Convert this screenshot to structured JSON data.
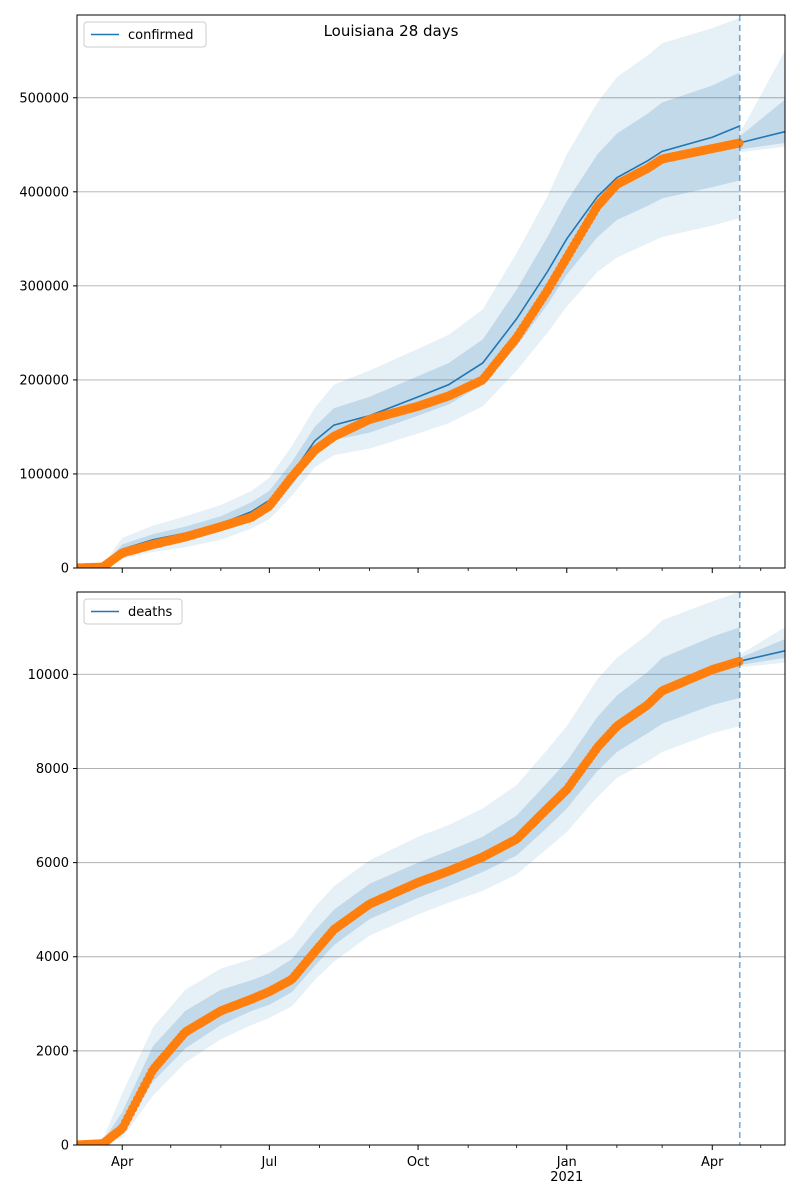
{
  "chart_data": [
    {
      "type": "line",
      "title": "Louisiana 28 days",
      "legend": {
        "label": "confirmed",
        "placement": "top-left"
      },
      "x_ticks": [
        {
          "date": "2020-04-01",
          "label": "Apr",
          "sublabel": ""
        },
        {
          "date": "2020-07-01",
          "label": "Jul",
          "sublabel": ""
        },
        {
          "date": "2020-10-01",
          "label": "Oct",
          "sublabel": ""
        },
        {
          "date": "2021-01-01",
          "label": "Jan",
          "sublabel": "2021"
        },
        {
          "date": "2021-04-01",
          "label": "Apr",
          "sublabel": ""
        }
      ],
      "xlim": [
        "2020-03-04",
        "2021-05-16"
      ],
      "ylim": [
        0,
        588000
      ],
      "yticks": [
        0,
        100000,
        200000,
        300000,
        400000,
        500000
      ],
      "ytick_labels": [
        "0",
        "100000",
        "200000",
        "300000",
        "400000",
        "500000"
      ],
      "grid": "horizontal",
      "forecast_start": "2021-04-18",
      "colors": {
        "model": "#1f77b4",
        "observed": "#ff7f0e",
        "band": "#1f77b4",
        "forecast_line": "#1f77b4"
      },
      "x": [
        "2020-03-04",
        "2020-03-20",
        "2020-04-01",
        "2020-04-20",
        "2020-05-10",
        "2020-06-01",
        "2020-06-20",
        "2020-07-01",
        "2020-07-15",
        "2020-07-29",
        "2020-08-10",
        "2020-09-01",
        "2020-10-01",
        "2020-10-20",
        "2020-11-10",
        "2020-12-01",
        "2020-12-20",
        "2021-01-01",
        "2021-01-20",
        "2021-02-01",
        "2021-02-20",
        "2021-03-01",
        "2021-04-01",
        "2021-04-18"
      ],
      "model": [
        0,
        2000,
        20000,
        30000,
        37000,
        47000,
        60000,
        72000,
        100000,
        135000,
        152000,
        162000,
        182000,
        195000,
        218000,
        265000,
        315000,
        350000,
        395000,
        415000,
        433000,
        443000,
        458000,
        470000
      ],
      "band_inner": [
        [
          0,
          0
        ],
        [
          1500,
          2500
        ],
        [
          15000,
          25000
        ],
        [
          24000,
          36000
        ],
        [
          30000,
          44000
        ],
        [
          39000,
          55000
        ],
        [
          51000,
          70000
        ],
        [
          62000,
          82000
        ],
        [
          88000,
          113000
        ],
        [
          120000,
          150000
        ],
        [
          136000,
          170000
        ],
        [
          144000,
          182000
        ],
        [
          162000,
          204000
        ],
        [
          174000,
          218000
        ],
        [
          195000,
          243000
        ],
        [
          236000,
          296000
        ],
        [
          280000,
          352000
        ],
        [
          312000,
          390000
        ],
        [
          352000,
          440000
        ],
        [
          370000,
          462000
        ],
        [
          385000,
          483000
        ],
        [
          393000,
          495000
        ],
        [
          405000,
          513000
        ],
        [
          412000,
          527000
        ]
      ],
      "band_outer": [
        [
          0,
          0
        ],
        [
          1000,
          3500
        ],
        [
          10000,
          32000
        ],
        [
          17000,
          45000
        ],
        [
          22000,
          55000
        ],
        [
          30000,
          67000
        ],
        [
          42000,
          82000
        ],
        [
          52000,
          96000
        ],
        [
          77000,
          130000
        ],
        [
          107000,
          170000
        ],
        [
          120000,
          195000
        ],
        [
          127000,
          210000
        ],
        [
          143000,
          233000
        ],
        [
          154000,
          248000
        ],
        [
          172000,
          275000
        ],
        [
          210000,
          335000
        ],
        [
          250000,
          395000
        ],
        [
          278000,
          440000
        ],
        [
          315000,
          495000
        ],
        [
          330000,
          522000
        ],
        [
          345000,
          545000
        ],
        [
          352000,
          558000
        ],
        [
          364000,
          574000
        ],
        [
          372000,
          585000
        ]
      ],
      "band_inner_alpha": 0.18,
      "band_outer_alpha": 0.11,
      "observed": [
        0,
        1000,
        16000,
        25000,
        33000,
        44000,
        54000,
        66000,
        97000,
        125000,
        140000,
        158000,
        172000,
        183000,
        200000,
        245000,
        295000,
        330000,
        385000,
        408000,
        425000,
        435000,
        446000,
        452000
      ],
      "forecast_x": [
        "2021-04-18",
        "2021-05-16"
      ],
      "forecast": [
        452000,
        464000
      ],
      "forecast_band_inner": [
        [
          445000,
          459000
        ],
        [
          452000,
          498000
        ]
      ],
      "forecast_band_outer": [
        [
          442000,
          462000
        ],
        [
          448000,
          550000
        ]
      ]
    },
    {
      "type": "line",
      "title": "",
      "legend": {
        "label": "deaths",
        "placement": "top-left"
      },
      "x_ticks": [
        {
          "date": "2020-04-01",
          "label": "Apr",
          "sublabel": ""
        },
        {
          "date": "2020-07-01",
          "label": "Jul",
          "sublabel": ""
        },
        {
          "date": "2020-10-01",
          "label": "Oct",
          "sublabel": ""
        },
        {
          "date": "2021-01-01",
          "label": "Jan",
          "sublabel": "2021"
        },
        {
          "date": "2021-04-01",
          "label": "Apr",
          "sublabel": ""
        }
      ],
      "xlim": [
        "2020-03-04",
        "2021-05-16"
      ],
      "ylim": [
        0,
        11750
      ],
      "yticks": [
        0,
        2000,
        4000,
        6000,
        8000,
        10000
      ],
      "ytick_labels": [
        "0",
        "2000",
        "4000",
        "6000",
        "8000",
        "10000"
      ],
      "grid": "horizontal",
      "forecast_start": "2021-04-18",
      "colors": {
        "model": "#1f77b4",
        "observed": "#ff7f0e",
        "band": "#1f77b4",
        "forecast_line": "#1f77b4"
      },
      "x": [
        "2020-03-04",
        "2020-03-20",
        "2020-04-01",
        "2020-04-20",
        "2020-05-10",
        "2020-06-01",
        "2020-06-20",
        "2020-07-01",
        "2020-07-15",
        "2020-07-29",
        "2020-08-10",
        "2020-09-01",
        "2020-10-01",
        "2020-10-20",
        "2020-11-10",
        "2020-12-01",
        "2020-12-20",
        "2021-01-01",
        "2021-01-20",
        "2021-02-01",
        "2021-02-20",
        "2021-03-01",
        "2021-04-01",
        "2021-04-18"
      ],
      "model": [
        0,
        50,
        400,
        1700,
        2450,
        2900,
        3150,
        3280,
        3550,
        4150,
        4600,
        5150,
        5600,
        5850,
        6150,
        6550,
        7200,
        7600,
        8500,
        8950,
        9400,
        9650,
        10100,
        10270
      ],
      "band_inner": [
        [
          0,
          0
        ],
        [
          30,
          80
        ],
        [
          250,
          700
        ],
        [
          1350,
          2100
        ],
        [
          2050,
          2850
        ],
        [
          2550,
          3300
        ],
        [
          2850,
          3500
        ],
        [
          2980,
          3650
        ],
        [
          3250,
          3950
        ],
        [
          3800,
          4550
        ],
        [
          4250,
          5000
        ],
        [
          4800,
          5550
        ],
        [
          5250,
          6000
        ],
        [
          5500,
          6250
        ],
        [
          5800,
          6550
        ],
        [
          6150,
          7000
        ],
        [
          6750,
          7700
        ],
        [
          7150,
          8150
        ],
        [
          7950,
          9100
        ],
        [
          8350,
          9550
        ],
        [
          8750,
          10050
        ],
        [
          8950,
          10350
        ],
        [
          9350,
          10800
        ],
        [
          9500,
          11000
        ]
      ],
      "band_outer": [
        [
          0,
          0
        ],
        [
          20,
          120
        ],
        [
          150,
          1100
        ],
        [
          1050,
          2500
        ],
        [
          1750,
          3300
        ],
        [
          2250,
          3750
        ],
        [
          2550,
          3950
        ],
        [
          2700,
          4100
        ],
        [
          2950,
          4400
        ],
        [
          3500,
          5050
        ],
        [
          3900,
          5500
        ],
        [
          4450,
          6050
        ],
        [
          4900,
          6550
        ],
        [
          5150,
          6800
        ],
        [
          5400,
          7150
        ],
        [
          5750,
          7650
        ],
        [
          6300,
          8400
        ],
        [
          6650,
          8900
        ],
        [
          7400,
          9900
        ],
        [
          7800,
          10350
        ],
        [
          8150,
          10850
        ],
        [
          8350,
          11150
        ],
        [
          8750,
          11550
        ],
        [
          8900,
          11750
        ]
      ],
      "band_inner_alpha": 0.18,
      "band_outer_alpha": 0.11,
      "observed": [
        0,
        30,
        350,
        1600,
        2400,
        2850,
        3100,
        3260,
        3520,
        4100,
        4580,
        5120,
        5580,
        5820,
        6120,
        6500,
        7150,
        7550,
        8450,
        8900,
        9350,
        9650,
        10100,
        10280
      ],
      "forecast_x": [
        "2021-04-18",
        "2021-05-16"
      ],
      "forecast": [
        10280,
        10500
      ],
      "forecast_band_inner": [
        [
          10200,
          10350
        ],
        [
          10350,
          10750
        ]
      ],
      "forecast_band_outer": [
        [
          10150,
          10420
        ],
        [
          10250,
          11000
        ]
      ]
    }
  ]
}
